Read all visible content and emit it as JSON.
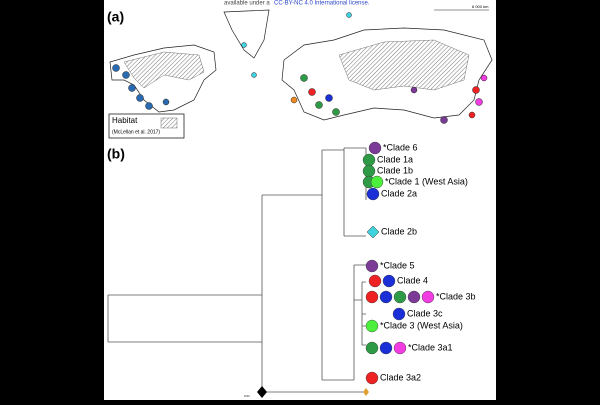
{
  "header": {
    "notice": "available under a",
    "license": "CC-BY-NC 4.0 International license."
  },
  "map": {
    "panel_label": "(a)",
    "legend_title": "Habitat",
    "legend_source": "(McLellan et al. 2017)",
    "scale": "6 000 km"
  },
  "tree": {
    "panel_label": "(b)",
    "scale": "0.01",
    "clades": [
      {
        "label": "*Clade 6",
        "colors": [
          "#7a3a96"
        ]
      },
      {
        "label": "Clade 1a",
        "colors": [
          "#2e9a45"
        ]
      },
      {
        "label": "Clade 1b",
        "colors": [
          "#2e9a45"
        ]
      },
      {
        "label": "*Clade 1 (West Asia)",
        "colors": [
          "#2e9a45",
          "#4cf03c"
        ]
      },
      {
        "label": "Clade 2a",
        "colors": [
          "#1a2fd6"
        ]
      },
      {
        "label": "Clade 2b",
        "colors": [
          "#3fd3e0"
        ],
        "shape": "diamond"
      },
      {
        "label": "*Clade 5",
        "colors": [
          "#7a3a96"
        ]
      },
      {
        "label": "Clade 4",
        "colors": [
          "#ee2222",
          "#1a2fd6"
        ]
      },
      {
        "label": "*Clade 3b",
        "colors": [
          "#ee2222",
          "#1a2fd6",
          "#2e9a45",
          "#7a3a96",
          "#f03ce0"
        ]
      },
      {
        "label": "Clade 3c",
        "colors": [
          "#1a2fd6"
        ]
      },
      {
        "label": "*Clade 3 (West Asia)",
        "colors": [
          "#4cf03c"
        ]
      },
      {
        "label": "*Clade 3a1",
        "colors": [
          "#2e9a45",
          "#1a2fd6",
          "#f03ce0"
        ]
      },
      {
        "label": "Clade 3a2",
        "colors": [
          "#ee2222"
        ]
      }
    ]
  }
}
